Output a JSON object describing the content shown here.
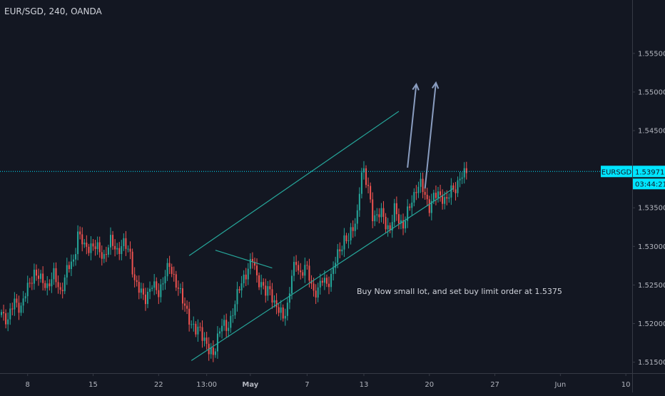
{
  "header": {
    "title": "EUR/SGD, 240, OANDA"
  },
  "colors": {
    "background": "#131722",
    "up": "#26a69a",
    "down": "#ef5350",
    "channel": "#26a69a",
    "arrow": "#8a9dc0",
    "last_price_bg": "#00e5ff",
    "axis_border": "#363a45"
  },
  "chart_data": {
    "type": "candlestick",
    "title": "EUR/SGD, 240, OANDA",
    "symbol": "EURSGD",
    "last_price": "1.53971",
    "countdown": "03:44:21",
    "ylim": [
      1.5145,
      1.5585
    ],
    "y_ticks": [
      "1.55500",
      "1.55000",
      "1.54500",
      "1.54000",
      "1.53500",
      "1.53000",
      "1.52500",
      "1.52000",
      "1.51500"
    ],
    "y_tick_values": [
      1.555,
      1.55,
      1.545,
      1.54,
      1.535,
      1.53,
      1.525,
      1.52,
      1.515
    ],
    "x_ticks": [
      {
        "label": "8",
        "bar": 12
      },
      {
        "label": "15",
        "bar": 42
      },
      {
        "label": "22",
        "bar": 72
      },
      {
        "label": "13:00",
        "bar": 94
      },
      {
        "label": "May",
        "bar": 114
      },
      {
        "label": "7",
        "bar": 140
      },
      {
        "label": "13",
        "bar": 166
      },
      {
        "label": "20",
        "bar": 196
      },
      {
        "label": "27",
        "bar": 226
      },
      {
        "label": "Jun",
        "bar": 256
      },
      {
        "label": "10",
        "bar": 286
      }
    ],
    "bars_total": 289,
    "key_points": [
      [
        0,
        1.5215
      ],
      [
        3,
        1.5205
      ],
      [
        6,
        1.5228
      ],
      [
        9,
        1.5222
      ],
      [
        12,
        1.5245
      ],
      [
        15,
        1.5268
      ],
      [
        18,
        1.5255
      ],
      [
        21,
        1.525
      ],
      [
        24,
        1.5262
      ],
      [
        27,
        1.5242
      ],
      [
        30,
        1.5268
      ],
      [
        33,
        1.5282
      ],
      [
        35,
        1.5318
      ],
      [
        38,
        1.5298
      ],
      [
        41,
        1.5302
      ],
      [
        44,
        1.5296
      ],
      [
        47,
        1.5288
      ],
      [
        50,
        1.5305
      ],
      [
        53,
        1.5296
      ],
      [
        56,
        1.5302
      ],
      [
        59,
        1.5292
      ],
      [
        61,
        1.5255
      ],
      [
        63,
        1.5242
      ],
      [
        66,
        1.5235
      ],
      [
        69,
        1.5248
      ],
      [
        72,
        1.5242
      ],
      [
        75,
        1.5262
      ],
      [
        77,
        1.5275
      ],
      [
        79,
        1.5262
      ],
      [
        81,
        1.5245
      ],
      [
        83,
        1.5228
      ],
      [
        85,
        1.5218
      ],
      [
        87,
        1.5198
      ],
      [
        89,
        1.5188
      ],
      [
        91,
        1.5195
      ],
      [
        93,
        1.518
      ],
      [
        95,
        1.5162
      ],
      [
        97,
        1.516
      ],
      [
        99,
        1.5185
      ],
      [
        101,
        1.5198
      ],
      [
        103,
        1.5192
      ],
      [
        105,
        1.5208
      ],
      [
        107,
        1.5225
      ],
      [
        109,
        1.5245
      ],
      [
        111,
        1.5262
      ],
      [
        113,
        1.527
      ],
      [
        115,
        1.5282
      ],
      [
        117,
        1.5262
      ],
      [
        119,
        1.5252
      ],
      [
        121,
        1.5238
      ],
      [
        123,
        1.5245
      ],
      [
        125,
        1.5228
      ],
      [
        127,
        1.5215
      ],
      [
        129,
        1.5208
      ],
      [
        131,
        1.5225
      ],
      [
        133,
        1.5262
      ],
      [
        135,
        1.5278
      ],
      [
        137,
        1.5265
      ],
      [
        139,
        1.5275
      ],
      [
        141,
        1.5258
      ],
      [
        143,
        1.5242
      ],
      [
        145,
        1.5245
      ],
      [
        147,
        1.5255
      ],
      [
        149,
        1.5252
      ],
      [
        151,
        1.5262
      ],
      [
        153,
        1.528
      ],
      [
        155,
        1.5295
      ],
      [
        157,
        1.5312
      ],
      [
        159,
        1.5308
      ],
      [
        161,
        1.5322
      ],
      [
        163,
        1.5345
      ],
      [
        164,
        1.5375
      ],
      [
        165,
        1.5395
      ],
      [
        166,
        1.5392
      ],
      [
        167,
        1.5382
      ],
      [
        168,
        1.5378
      ],
      [
        170,
        1.5342
      ],
      [
        172,
        1.5335
      ],
      [
        174,
        1.5345
      ],
      [
        176,
        1.5332
      ],
      [
        178,
        1.5318
      ],
      [
        180,
        1.5348
      ],
      [
        182,
        1.5338
      ],
      [
        184,
        1.5325
      ],
      [
        186,
        1.5342
      ],
      [
        188,
        1.5362
      ],
      [
        190,
        1.5375
      ],
      [
        192,
        1.5378
      ],
      [
        194,
        1.5368
      ],
      [
        196,
        1.5352
      ],
      [
        198,
        1.5362
      ],
      [
        200,
        1.5368
      ],
      [
        202,
        1.5365
      ],
      [
        204,
        1.5358
      ],
      [
        206,
        1.5372
      ],
      [
        208,
        1.5378
      ],
      [
        210,
        1.5388
      ],
      [
        212,
        1.5392
      ],
      [
        213,
        1.5397
      ]
    ],
    "annotation": "Buy Now small lot, and set buy limit order at 1.5375",
    "drawings": {
      "channel_upper": [
        [
          86,
          1.5288
        ],
        [
          182,
          1.5475
        ]
      ],
      "channel_lower": [
        [
          87,
          1.5152
        ],
        [
          207,
          1.5375
        ]
      ],
      "triangle_line": [
        [
          98,
          1.5295
        ],
        [
          124,
          1.5272
        ]
      ],
      "arrows": [
        {
          "from": [
            186,
            1.5402
          ],
          "to": [
            190,
            1.551
          ]
        },
        {
          "from": [
            194,
            1.5375
          ],
          "to": [
            199,
            1.5512
          ]
        }
      ]
    },
    "grid": false,
    "legend": "none"
  }
}
